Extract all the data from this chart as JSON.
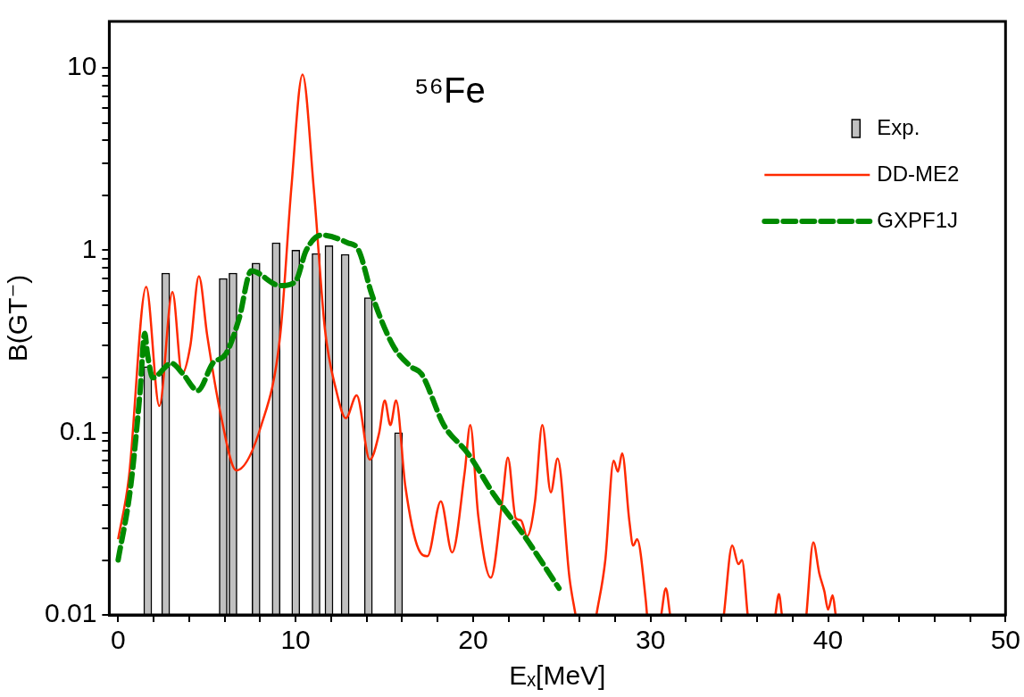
{
  "chart_data": {
    "type": "line",
    "title": "⁵⁶Fe",
    "xlabel": "Eₓ[MeV]",
    "ylabel": "B(GT⁻)",
    "log": "y",
    "grid": false,
    "legend": "top right",
    "marker": "none",
    "xlim": [
      -0.5,
      50
    ],
    "xticks": [
      0,
      {
        "value": 2,
        "label": null
      },
      {
        "value": 4,
        "label": null
      },
      {
        "value": 6,
        "label": null
      },
      {
        "value": 8,
        "label": null
      },
      10,
      {
        "value": 12,
        "label": null
      },
      {
        "value": 14,
        "label": null
      },
      {
        "value": 16,
        "label": null
      },
      {
        "value": 18,
        "label": null
      },
      20,
      {
        "value": 22,
        "label": null
      },
      {
        "value": 24,
        "label": null
      },
      {
        "value": 26,
        "label": null
      },
      {
        "value": 28,
        "label": null
      },
      30,
      {
        "value": 32,
        "label": null
      },
      {
        "value": 34,
        "label": null
      },
      {
        "value": 36,
        "label": null
      },
      {
        "value": 38,
        "label": null
      },
      40,
      {
        "value": 42,
        "label": null
      },
      {
        "value": 44,
        "label": null
      },
      {
        "value": 46,
        "label": null
      },
      {
        "value": 48,
        "label": null
      },
      50
    ],
    "ylim": [
      0.01,
      18
    ],
    "yticks": [
      0.01,
      {
        "value": 0.02,
        "label": null
      },
      {
        "value": 0.03,
        "label": null
      },
      {
        "value": 0.04,
        "label": null
      },
      {
        "value": 0.05,
        "label": null
      },
      {
        "value": 0.06,
        "label": null
      },
      {
        "value": 0.07,
        "label": null
      },
      {
        "value": 0.08,
        "label": null
      },
      {
        "value": 0.09,
        "label": null
      },
      0.1,
      {
        "value": 0.2,
        "label": null
      },
      {
        "value": 0.3,
        "label": null
      },
      {
        "value": 0.4,
        "label": null
      },
      {
        "value": 0.5,
        "label": null
      },
      {
        "value": 0.6,
        "label": null
      },
      {
        "value": 0.7,
        "label": null
      },
      {
        "value": 0.8,
        "label": null
      },
      {
        "value": 0.9,
        "label": null
      },
      1,
      {
        "value": 2,
        "label": null
      },
      {
        "value": 3,
        "label": null
      },
      {
        "value": 4,
        "label": null
      },
      {
        "value": 5,
        "label": null
      },
      {
        "value": 6,
        "label": null
      },
      {
        "value": 7,
        "label": null
      },
      {
        "value": 8,
        "label": null
      },
      {
        "value": 9,
        "label": null
      },
      10
    ],
    "series": [
      {
        "type": "bar",
        "name": "Exp.",
        "color": "#c0c0c0",
        "x": [
          1.67,
          2.68,
          5.92,
          6.47,
          7.77,
          8.9,
          10.01,
          11.15,
          11.88,
          12.79,
          14.1,
          15.8
        ],
        "values": [
          0.23,
          0.75,
          0.7,
          0.75,
          0.85,
          1.1,
          1.0,
          0.96,
          1.06,
          0.95,
          0.55,
          0.1
        ]
      },
      {
        "name": "DD-ME2",
        "color": "#ff2a00",
        "line_style": "solid",
        "x": [
          0,
          0.6,
          1.58,
          2.32,
          3.06,
          3.6,
          4.07,
          4.55,
          5.02,
          5.75,
          6.66,
          8.07,
          9.13,
          9.76,
          10.39,
          11.02,
          11.65,
          12.29,
          12.83,
          13.44,
          14.18,
          14.71,
          15.02,
          15.34,
          15.66,
          16.18,
          16.92,
          17.43,
          18.18,
          18.82,
          19.53,
          19.84,
          20.29,
          21.0,
          21.64,
          21.96,
          22.4,
          22.7,
          23.04,
          23.49,
          23.9,
          24.38,
          24.76,
          25.43,
          25.77,
          26.4,
          26.95,
          27.45,
          27.92,
          28.16,
          28.4,
          28.8,
          29.02,
          29.24,
          29.73,
          29.8,
          30.2,
          30.6,
          30.86,
          31.1,
          32.6,
          34.13,
          34.6,
          34.95,
          35.15,
          35.47,
          36.3,
          37.03,
          37.23,
          37.4,
          38.1,
          38.78,
          39.17,
          39.5,
          39.79,
          40.0,
          40.26,
          40.43
        ],
        "values": [
          0.026,
          0.056,
          0.63,
          0.14,
          0.59,
          0.21,
          0.3,
          0.72,
          0.34,
          0.13,
          0.062,
          0.11,
          0.34,
          2.2,
          9.2,
          2.2,
          0.37,
          0.17,
          0.12,
          0.16,
          0.071,
          0.1,
          0.15,
          0.11,
          0.15,
          0.051,
          0.023,
          0.021,
          0.042,
          0.022,
          0.061,
          0.11,
          0.035,
          0.016,
          0.042,
          0.073,
          0.034,
          0.033,
          0.027,
          0.042,
          0.11,
          0.047,
          0.072,
          0.016,
          0.01,
          null,
          0.01,
          0.02,
          0.07,
          0.061,
          0.077,
          0.033,
          0.024,
          0.026,
          0.012,
          0.01,
          null,
          0.01,
          0.014,
          0.01,
          null,
          0.01,
          0.024,
          0.019,
          0.02,
          0.01,
          null,
          0.01,
          0.013,
          0.01,
          null,
          0.01,
          0.025,
          0.017,
          0.0135,
          0.0107,
          0.0128,
          0.01
        ]
      },
      {
        "name": "GXPF1J",
        "color": "#008a00",
        "line_style": "dashed",
        "x": [
          0,
          0.7,
          1.23,
          1.5,
          1.65,
          1.96,
          3.0,
          3.65,
          4.49,
          5.33,
          6.07,
          6.81,
          7.5,
          9.13,
          9.97,
          10.6,
          11.44,
          12.92,
          13.55,
          14.3,
          15.49,
          16.5,
          17.09,
          18.35,
          19.7,
          21.22,
          22.9,
          24.84
        ],
        "values": [
          0.02,
          0.05,
          0.165,
          0.35,
          0.27,
          0.2,
          0.24,
          0.21,
          0.17,
          0.24,
          0.27,
          0.42,
          0.77,
          0.64,
          0.67,
          1.0,
          1.21,
          1.1,
          1.0,
          0.57,
          0.3,
          0.23,
          0.21,
          0.11,
          0.077,
          0.045,
          0.027,
          0.014
        ]
      }
    ]
  }
}
